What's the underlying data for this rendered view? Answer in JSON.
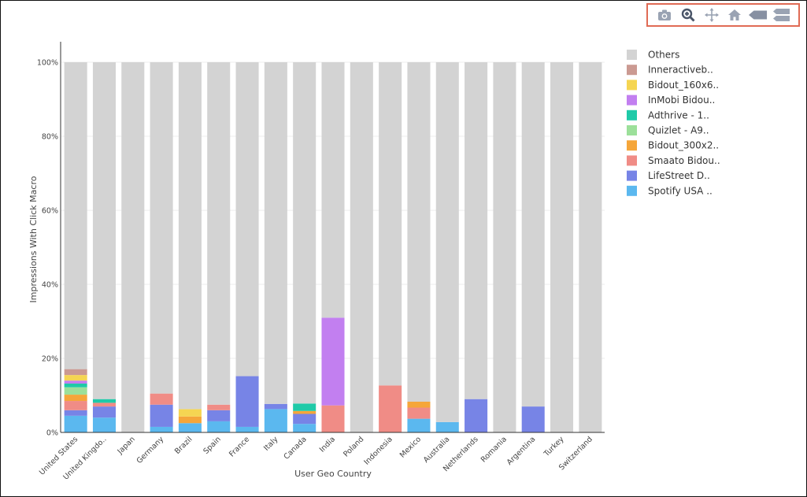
{
  "toolbar": {
    "buttons": [
      {
        "name": "camera-icon",
        "title": "Download plot as a png"
      },
      {
        "name": "zoom-icon",
        "title": "Zoom"
      },
      {
        "name": "pan-icon",
        "title": "Pan"
      },
      {
        "name": "home-icon",
        "title": "Reset axes"
      },
      {
        "name": "hover-closest-icon",
        "title": "Show closest data on hover"
      },
      {
        "name": "hover-compare-icon",
        "title": "Compare data on hover"
      }
    ],
    "icon_color": "#9aa3b3"
  },
  "chart_data": {
    "type": "bar",
    "stacked": true,
    "xlabel": "User Geo Country",
    "ylabel": "Impressions With Click Macro",
    "ylim": [
      0,
      100
    ],
    "yticks": [
      "0%",
      "20%",
      "40%",
      "60%",
      "80%",
      "100%"
    ],
    "ytick_values": [
      0,
      20,
      40,
      60,
      80,
      100
    ],
    "grid": true,
    "legend_position": "right",
    "categories": [
      "United States",
      "United Kingdo..",
      "Japan",
      "Germany",
      "Brazil",
      "Spain",
      "France",
      "Italy",
      "Canada",
      "India",
      "Poland",
      "Indonesia",
      "Mexico",
      "Australia",
      "Netherlands",
      "Romania",
      "Argentina",
      "Turkey",
      "Switzerland"
    ],
    "series": [
      {
        "name": "Spotify USA ..",
        "color": "#5bb8ef",
        "values": [
          4.5,
          4.0,
          0,
          1.5,
          2.5,
          3.0,
          1.5,
          6.3,
          2.3,
          0,
          0,
          0,
          3.7,
          2.8,
          0,
          0,
          0,
          0,
          0
        ]
      },
      {
        "name": "LifeStreet D..",
        "color": "#7784e6",
        "values": [
          1.5,
          3.0,
          0,
          6.0,
          0,
          3.0,
          13.7,
          1.4,
          2.7,
          0,
          0,
          0,
          0,
          0,
          9.0,
          0,
          7.0,
          0,
          0
        ]
      },
      {
        "name": "Smaato Bidou..",
        "color": "#f08c86",
        "values": [
          2.5,
          1.0,
          0,
          3.0,
          0,
          1.5,
          0,
          0,
          0,
          7.3,
          0,
          12.7,
          3.0,
          0,
          0,
          0,
          0,
          0,
          0
        ]
      },
      {
        "name": "Bidout_300x2..",
        "color": "#f5a63a",
        "values": [
          1.7,
          0,
          0,
          0,
          1.8,
          0,
          0,
          0,
          0.8,
          0,
          0,
          0,
          1.6,
          0,
          0,
          0,
          0,
          0,
          0
        ]
      },
      {
        "name": "Quizlet - A9..",
        "color": "#9ce09a",
        "values": [
          2.0,
          0,
          0,
          0,
          0,
          0,
          0,
          0,
          0,
          0,
          0,
          0,
          0,
          0,
          0,
          0,
          0,
          0,
          0
        ]
      },
      {
        "name": "Adthrive - 1..",
        "color": "#1fcaa8",
        "values": [
          1.0,
          1.0,
          0,
          0,
          0,
          0,
          0,
          0,
          2.0,
          0,
          0,
          0,
          0,
          0,
          0,
          0,
          0,
          0,
          0
        ]
      },
      {
        "name": "InMobi Bidou..",
        "color": "#c27ff0",
        "values": [
          0.8,
          0,
          0,
          0,
          0,
          0,
          0,
          0,
          0,
          23.7,
          0,
          0,
          0,
          0,
          0,
          0,
          0,
          0,
          0
        ]
      },
      {
        "name": "Bidout_160x6..",
        "color": "#f5d552",
        "values": [
          1.5,
          0,
          0,
          0,
          2.0,
          0,
          0,
          0,
          0,
          0,
          0,
          0,
          0,
          0,
          0,
          0,
          0,
          0,
          0
        ]
      },
      {
        "name": "Inneractiveb..",
        "color": "#cb9a92",
        "values": [
          1.6,
          0,
          0,
          0,
          0,
          0,
          0,
          0,
          0,
          0,
          0,
          0,
          0,
          0,
          0,
          0,
          0,
          0,
          0
        ]
      },
      {
        "name": "Others",
        "color": "#d3d3d3",
        "values": [
          82.9,
          91.0,
          100,
          89.5,
          93.7,
          92.5,
          84.8,
          92.3,
          92.2,
          69.0,
          100,
          87.3,
          91.7,
          97.2,
          91.0,
          100,
          93.0,
          100,
          100
        ]
      }
    ]
  }
}
